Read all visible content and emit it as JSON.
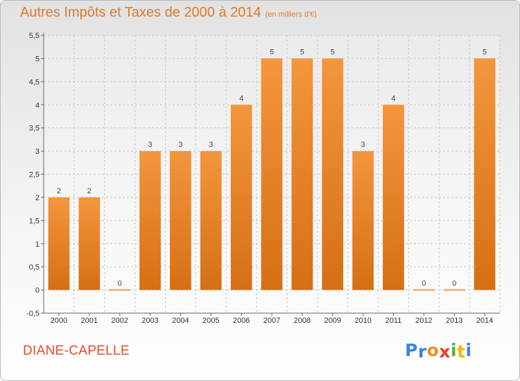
{
  "header": {
    "title": "Autres Impôts et Taxes de 2000 à 2014",
    "unit": "(en milliers d'€)"
  },
  "footer": {
    "city": "DIANE-CAPELLE",
    "logo_letters": [
      {
        "ch": "P",
        "color": "#3a86d8"
      },
      {
        "ch": "r",
        "color": "#3a86d8"
      },
      {
        "ch": "o",
        "color": "#f08a24"
      },
      {
        "ch": "x",
        "color": "#e8402a"
      },
      {
        "ch": "i",
        "color": "#57b13a"
      },
      {
        "ch": "t",
        "color": "#f5b800"
      },
      {
        "ch": "i",
        "color": "#3a86d8"
      }
    ]
  },
  "chart_data": {
    "type": "bar",
    "categories": [
      "2000",
      "2001",
      "2002",
      "2003",
      "2004",
      "2005",
      "2006",
      "2007",
      "2008",
      "2009",
      "2010",
      "2011",
      "2012",
      "2013",
      "2014"
    ],
    "values": [
      2,
      2,
      0,
      3,
      3,
      3,
      4,
      5,
      5,
      5,
      3,
      4,
      0,
      0,
      5
    ],
    "value_labels": [
      "2",
      "2",
      "0",
      "3",
      "3",
      "3",
      "4",
      "5",
      "5",
      "5",
      "3",
      "4",
      "0",
      "0",
      "5"
    ],
    "yticks": [
      "-0,5",
      "0",
      "0,5",
      "1",
      "1,5",
      "2",
      "2,5",
      "3",
      "3,5",
      "4",
      "4,5",
      "5",
      "5,5"
    ],
    "ytick_values": [
      -0.5,
      0,
      0.5,
      1,
      1.5,
      2,
      2.5,
      3,
      3.5,
      4,
      4.5,
      5,
      5.5
    ],
    "ylim": [
      -0.5,
      5.5
    ],
    "grid": true,
    "bar_color": "#f3963d",
    "bar_color_dark": "#d66f14"
  }
}
